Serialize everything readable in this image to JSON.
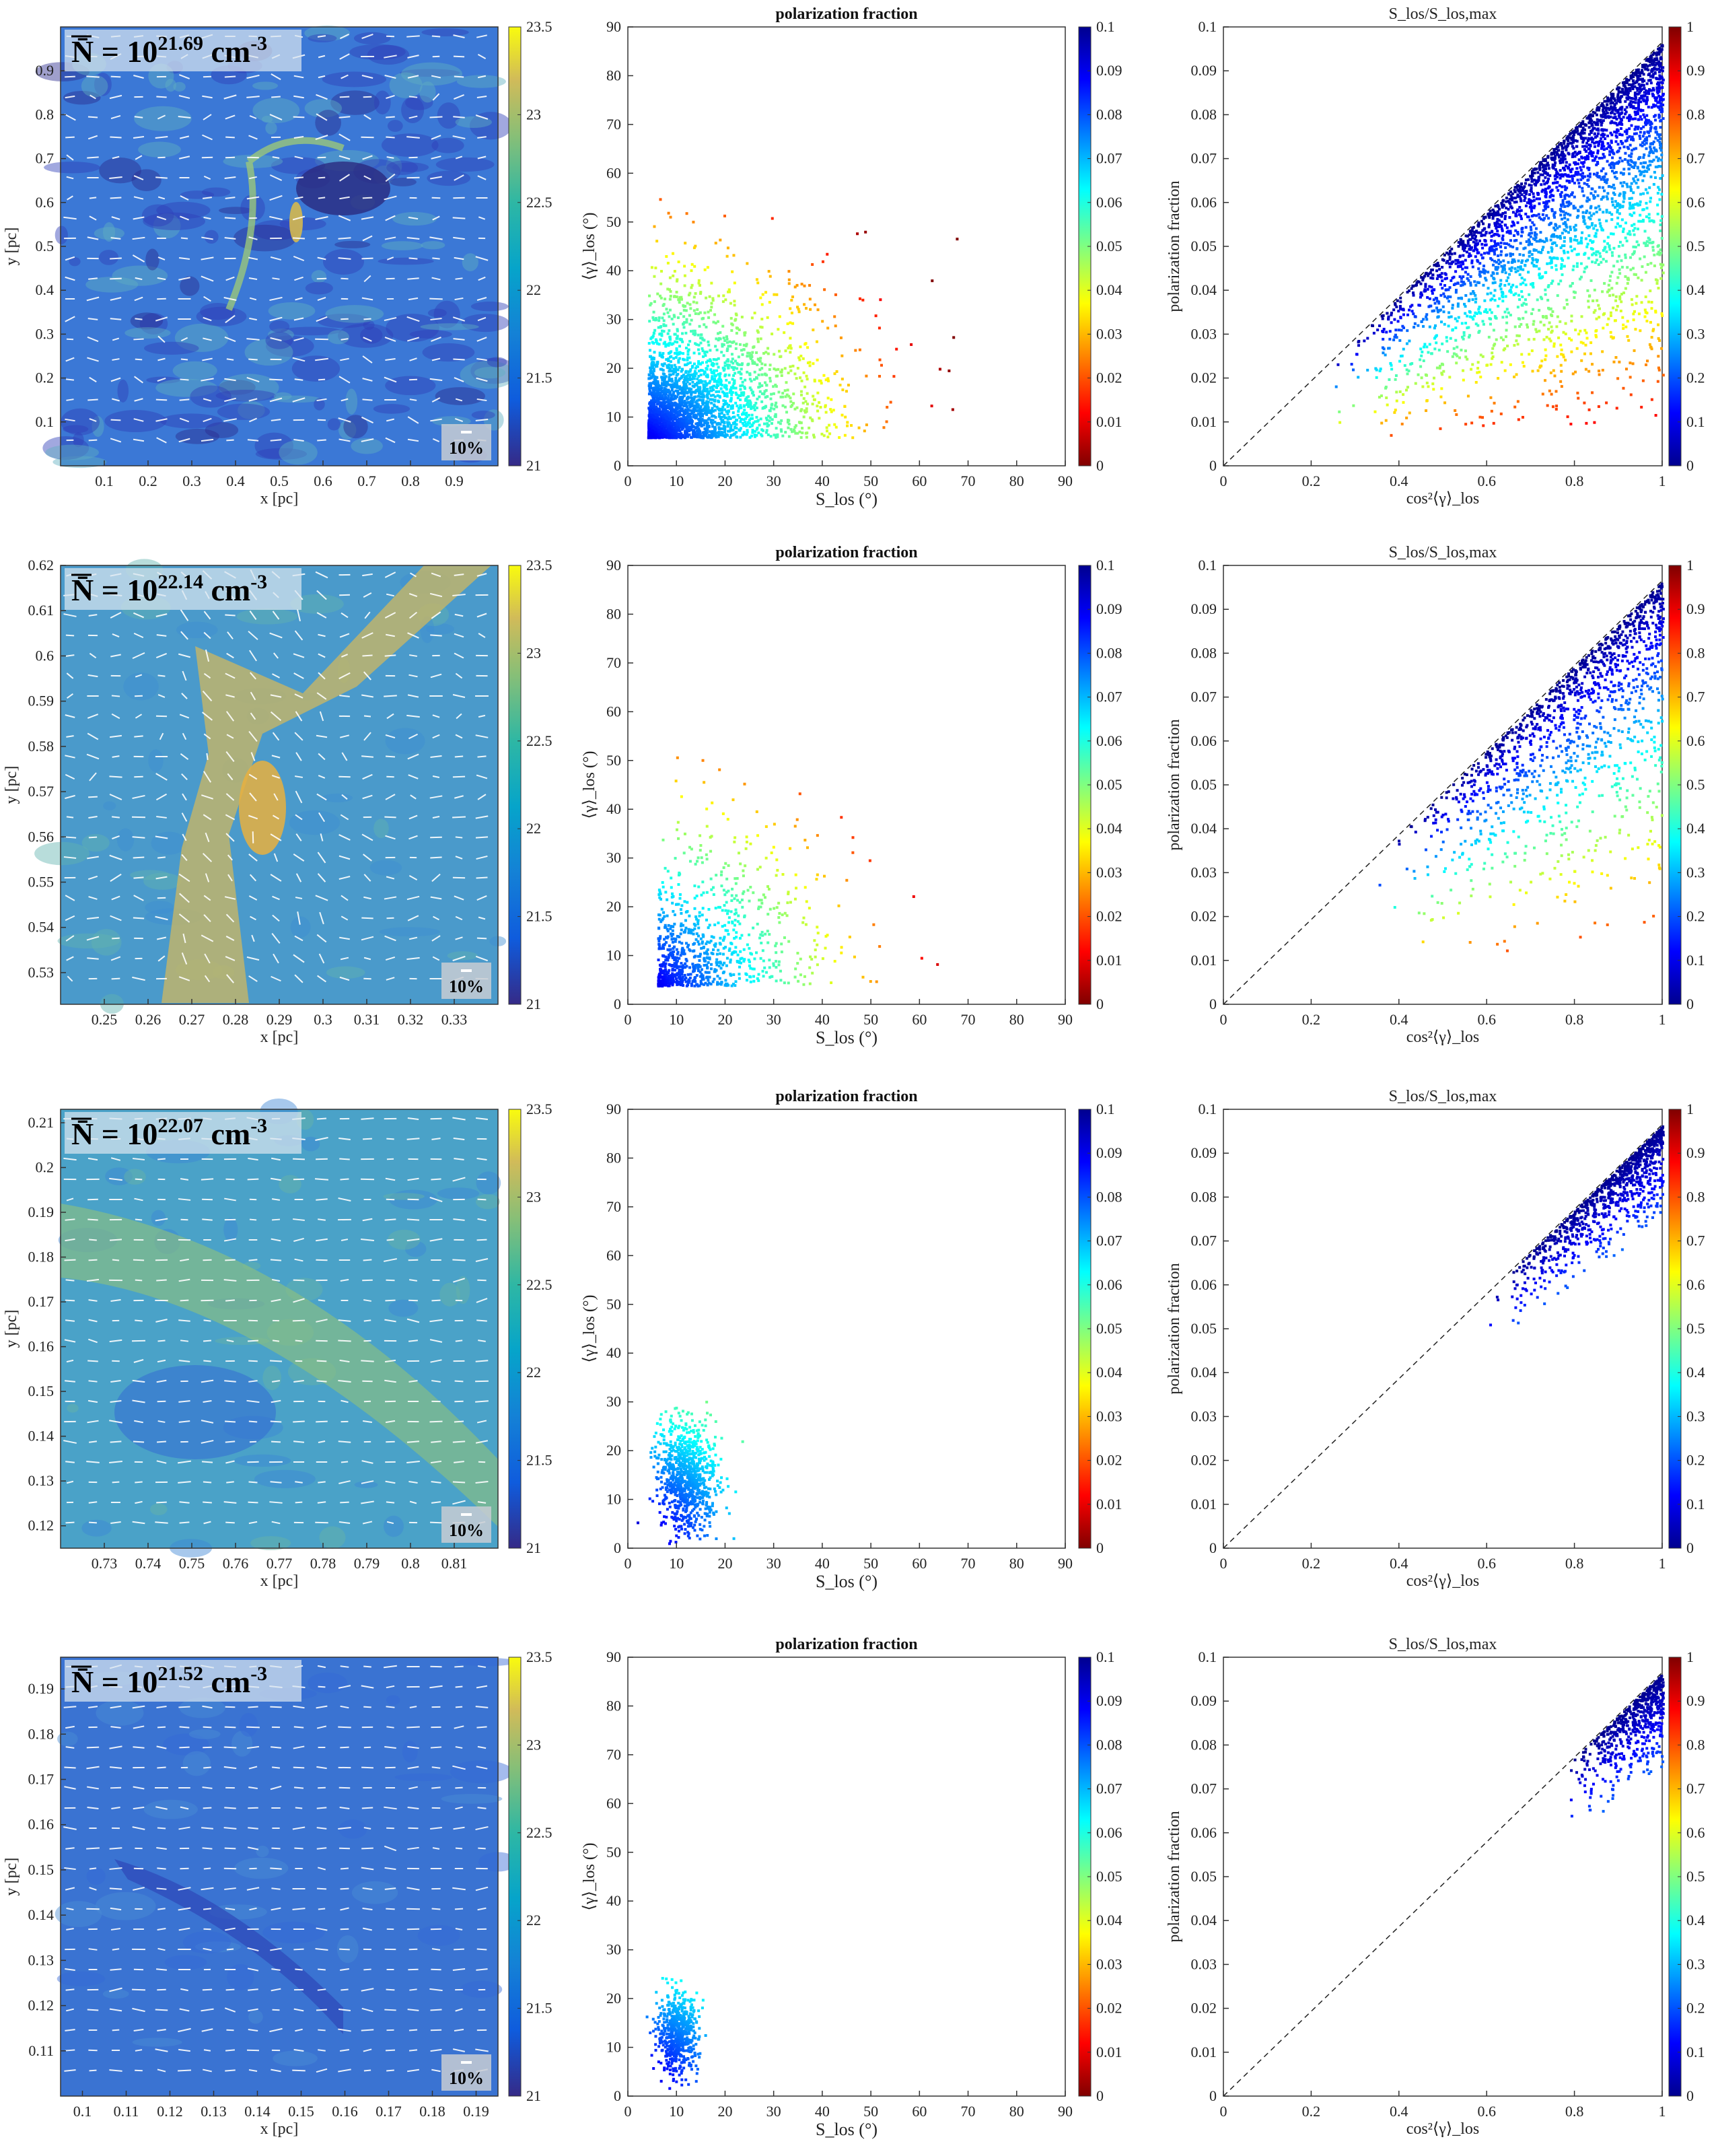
{
  "figure": {
    "rows": [
      {
        "map": {
          "density_label": "N̄ = 10",
          "density_exp": "21.69",
          "density_unit": " cm",
          "density_unit_exp": "-3",
          "scale_bar_label": "10%",
          "xlabel": "x [pc]",
          "ylabel": "y [pc]",
          "xticks": [
            "0.1",
            "0.2",
            "0.3",
            "0.4",
            "0.5",
            "0.6",
            "0.7",
            "0.8",
            "0.9"
          ],
          "xtick_vals": [
            0.1,
            0.2,
            0.3,
            0.4,
            0.5,
            0.6,
            0.7,
            0.8,
            0.9
          ],
          "xlim": [
            0.0,
            1.0
          ],
          "yticks": [
            "0.1",
            "0.2",
            "0.3",
            "0.4",
            "0.5",
            "0.6",
            "0.7",
            "0.8",
            "0.9"
          ],
          "ytick_vals": [
            0.1,
            0.2,
            0.3,
            0.4,
            0.5,
            0.6,
            0.7,
            0.8,
            0.9
          ],
          "ylim": [
            0.0,
            1.0
          ],
          "colorbar_ticks": [
            "21",
            "21.5",
            "22",
            "22.5",
            "23",
            "23.5"
          ],
          "colorbar_range": [
            21,
            23.5
          ],
          "type": "heatmap"
        },
        "scatter1": {
          "title": "polarization fraction",
          "type": "scatter",
          "xlabel": "S_los (°)",
          "ylabel": "⟨γ⟩_los (°)",
          "xticks": [
            "0",
            "10",
            "20",
            "30",
            "40",
            "50",
            "60",
            "70",
            "80",
            "90"
          ],
          "yticks": [
            "0",
            "10",
            "20",
            "30",
            "40",
            "50",
            "60",
            "70",
            "80",
            "90"
          ],
          "xlim": [
            0,
            90
          ],
          "ylim": [
            0,
            90
          ],
          "colorbar_ticks": [
            "0",
            "0.01",
            "0.02",
            "0.03",
            "0.04",
            "0.05",
            "0.06",
            "0.07",
            "0.08",
            "0.09",
            "0.1"
          ],
          "cluster": {
            "cx": 10,
            "cy": 14,
            "sx": 18,
            "sy": 12,
            "xmax": 72,
            "ymax": 60,
            "n": 3000
          }
        },
        "scatter2": {
          "title": "S_los/S_los,max",
          "type": "scatter",
          "xlabel": "cos²⟨γ⟩_los",
          "ylabel": "polarization fraction",
          "xticks": [
            "0",
            "0.2",
            "0.4",
            "0.6",
            "0.8",
            "1"
          ],
          "yticks": [
            "0",
            "0.01",
            "0.02",
            "0.03",
            "0.04",
            "0.05",
            "0.06",
            "0.07",
            "0.08",
            "0.09",
            "0.1"
          ],
          "xlim": [
            0,
            1
          ],
          "ylim": [
            0,
            0.1
          ],
          "colorbar_ticks": [
            "0",
            "0.1",
            "0.2",
            "0.3",
            "0.4",
            "0.5",
            "0.6",
            "0.7",
            "0.8",
            "0.9",
            "1"
          ],
          "reference_line": {
            "x": [
              0,
              1
            ],
            "y": [
              0,
              0.0965
            ]
          },
          "cluster": {
            "xmin": 0.25,
            "n": 3000
          }
        }
      },
      {
        "map": {
          "density_label": "N̄ = 10",
          "density_exp": "22.14",
          "density_unit": " cm",
          "density_unit_exp": "-3",
          "scale_bar_label": "10%",
          "xlabel": "x [pc]",
          "ylabel": "y [pc]",
          "xticks": [
            "0.25",
            "0.26",
            "0.27",
            "0.28",
            "0.29",
            "0.3",
            "0.31",
            "0.32",
            "0.33"
          ],
          "xtick_vals": [
            0.25,
            0.26,
            0.27,
            0.28,
            0.29,
            0.3,
            0.31,
            0.32,
            0.33
          ],
          "xlim": [
            0.24,
            0.34
          ],
          "yticks": [
            "0.53",
            "0.54",
            "0.55",
            "0.56",
            "0.57",
            "0.58",
            "0.59",
            "0.6",
            "0.61",
            "0.62"
          ],
          "ytick_vals": [
            0.53,
            0.54,
            0.55,
            0.56,
            0.57,
            0.58,
            0.59,
            0.6,
            0.61,
            0.62
          ],
          "ylim": [
            0.523,
            0.62
          ],
          "colorbar_ticks": [
            "21",
            "21.5",
            "22",
            "22.5",
            "23",
            "23.5"
          ],
          "colorbar_range": [
            21,
            23.5
          ],
          "type": "heatmap"
        },
        "scatter1": {
          "title": "polarization fraction",
          "type": "scatter",
          "xlabel": "S_los (°)",
          "ylabel": "⟨γ⟩_los (°)",
          "xticks": [
            "0",
            "10",
            "20",
            "30",
            "40",
            "50",
            "60",
            "70",
            "80",
            "90"
          ],
          "yticks": [
            "0",
            "10",
            "20",
            "30",
            "40",
            "50",
            "60",
            "70",
            "80",
            "90"
          ],
          "xlim": [
            0,
            90
          ],
          "ylim": [
            0,
            90
          ],
          "colorbar_ticks": [
            "0",
            "0.01",
            "0.02",
            "0.03",
            "0.04",
            "0.05",
            "0.06",
            "0.07",
            "0.08",
            "0.09",
            "0.1"
          ],
          "cluster": {
            "cx": 12,
            "cy": 12,
            "sx": 18,
            "sy": 12,
            "xmax": 72,
            "ymax": 55,
            "n": 900
          }
        },
        "scatter2": {
          "title": "S_los/S_los,max",
          "type": "scatter",
          "xlabel": "cos²⟨γ⟩_los",
          "ylabel": "polarization fraction",
          "xticks": [
            "0",
            "0.2",
            "0.4",
            "0.6",
            "0.8",
            "1"
          ],
          "yticks": [
            "0",
            "0.01",
            "0.02",
            "0.03",
            "0.04",
            "0.05",
            "0.06",
            "0.07",
            "0.08",
            "0.09",
            "0.1"
          ],
          "xlim": [
            0,
            1
          ],
          "ylim": [
            0,
            0.1
          ],
          "colorbar_ticks": [
            "0",
            "0.1",
            "0.2",
            "0.3",
            "0.4",
            "0.5",
            "0.6",
            "0.7",
            "0.8",
            "0.9",
            "1"
          ],
          "reference_line": {
            "x": [
              0,
              1
            ],
            "y": [
              0,
              0.0965
            ]
          },
          "cluster": {
            "xmin": 0.35,
            "n": 1300
          }
        }
      },
      {
        "map": {
          "density_label": "N̄ = 10",
          "density_exp": "22.07",
          "density_unit": " cm",
          "density_unit_exp": "-3",
          "scale_bar_label": "10%",
          "xlabel": "x [pc]",
          "ylabel": "y [pc]",
          "xticks": [
            "0.73",
            "0.74",
            "0.75",
            "0.76",
            "0.77",
            "0.78",
            "0.79",
            "0.8",
            "0.81"
          ],
          "xtick_vals": [
            0.73,
            0.74,
            0.75,
            0.76,
            0.77,
            0.78,
            0.79,
            0.8,
            0.81
          ],
          "xlim": [
            0.72,
            0.82
          ],
          "yticks": [
            "0.12",
            "0.13",
            "0.14",
            "0.15",
            "0.16",
            "0.17",
            "0.18",
            "0.19",
            "0.2",
            "0.21"
          ],
          "ytick_vals": [
            0.12,
            0.13,
            0.14,
            0.15,
            0.16,
            0.17,
            0.18,
            0.19,
            0.2,
            0.21
          ],
          "ylim": [
            0.115,
            0.213
          ],
          "colorbar_ticks": [
            "21",
            "21.5",
            "22",
            "22.5",
            "23",
            "23.5"
          ],
          "colorbar_range": [
            21,
            23.5
          ],
          "type": "heatmap"
        },
        "scatter1": {
          "title": "polarization fraction",
          "type": "scatter",
          "xlabel": "S_los (°)",
          "ylabel": "⟨γ⟩_los (°)",
          "xticks": [
            "0",
            "10",
            "20",
            "30",
            "40",
            "50",
            "60",
            "70",
            "80",
            "90"
          ],
          "yticks": [
            "0",
            "10",
            "20",
            "30",
            "40",
            "50",
            "60",
            "70",
            "80",
            "90"
          ],
          "xlim": [
            0,
            90
          ],
          "ylim": [
            0,
            90
          ],
          "colorbar_ticks": [
            "0",
            "0.01",
            "0.02",
            "0.03",
            "0.04",
            "0.05",
            "0.06",
            "0.07",
            "0.08",
            "0.09",
            "0.1"
          ],
          "cluster": {
            "cx": 12,
            "cy": 15,
            "sx": 5,
            "sy": 7,
            "xmax": 26,
            "ymax": 38,
            "n": 900
          }
        },
        "scatter2": {
          "title": "S_los/S_los,max",
          "type": "scatter",
          "xlabel": "cos²⟨γ⟩_los",
          "ylabel": "polarization fraction",
          "xticks": [
            "0",
            "0.2",
            "0.4",
            "0.6",
            "0.8",
            "1"
          ],
          "yticks": [
            "0",
            "0.01",
            "0.02",
            "0.03",
            "0.04",
            "0.05",
            "0.06",
            "0.07",
            "0.08",
            "0.09",
            "0.1"
          ],
          "xlim": [
            0,
            1
          ],
          "ylim": [
            0,
            0.1
          ],
          "colorbar_ticks": [
            "0",
            "0.1",
            "0.2",
            "0.3",
            "0.4",
            "0.5",
            "0.6",
            "0.7",
            "0.8",
            "0.9",
            "1"
          ],
          "reference_line": {
            "x": [
              0,
              1
            ],
            "y": [
              0,
              0.0965
            ]
          },
          "cluster": {
            "xmin": 0.6,
            "n": 900
          }
        }
      },
      {
        "map": {
          "density_label": "N̄ = 10",
          "density_exp": "21.52",
          "density_unit": " cm",
          "density_unit_exp": "-3",
          "scale_bar_label": "10%",
          "xlabel": "x [pc]",
          "ylabel": "y [pc]",
          "xticks": [
            "0.1",
            "0.11",
            "0.12",
            "0.13",
            "0.14",
            "0.15",
            "0.16",
            "0.17",
            "0.18",
            "0.19"
          ],
          "xtick_vals": [
            0.1,
            0.11,
            0.12,
            0.13,
            0.14,
            0.15,
            0.16,
            0.17,
            0.18,
            0.19
          ],
          "xlim": [
            0.095,
            0.195
          ],
          "yticks": [
            "0.11",
            "0.12",
            "0.13",
            "0.14",
            "0.15",
            "0.16",
            "0.17",
            "0.18",
            "0.19"
          ],
          "ytick_vals": [
            0.11,
            0.12,
            0.13,
            0.14,
            0.15,
            0.16,
            0.17,
            0.18,
            0.19
          ],
          "ylim": [
            0.1,
            0.197
          ],
          "colorbar_ticks": [
            "21",
            "21.5",
            "22",
            "22.5",
            "23",
            "23.5"
          ],
          "colorbar_range": [
            21,
            23.5
          ],
          "type": "heatmap"
        },
        "scatter1": {
          "title": "polarization fraction",
          "type": "scatter",
          "xlabel": "S_los (°)",
          "ylabel": "⟨γ⟩_los (°)",
          "xticks": [
            "0",
            "10",
            "20",
            "30",
            "40",
            "50",
            "60",
            "70",
            "80",
            "90"
          ],
          "yticks": [
            "0",
            "10",
            "20",
            "30",
            "40",
            "50",
            "60",
            "70",
            "80",
            "90"
          ],
          "xlim": [
            0,
            90
          ],
          "ylim": [
            0,
            90
          ],
          "colorbar_ticks": [
            "0",
            "0.01",
            "0.02",
            "0.03",
            "0.04",
            "0.05",
            "0.06",
            "0.07",
            "0.08",
            "0.09",
            "0.1"
          ],
          "cluster": {
            "cx": 10,
            "cy": 13,
            "sx": 3.5,
            "sy": 5,
            "xmax": 18,
            "ymax": 28,
            "n": 600
          }
        },
        "scatter2": {
          "title": "S_los/S_los,max",
          "type": "scatter",
          "xlabel": "cos²⟨γ⟩_los",
          "ylabel": "polarization fraction",
          "xticks": [
            "0",
            "0.2",
            "0.4",
            "0.6",
            "0.8",
            "1"
          ],
          "yticks": [
            "0",
            "0.01",
            "0.02",
            "0.03",
            "0.04",
            "0.05",
            "0.06",
            "0.07",
            "0.08",
            "0.09",
            "0.1"
          ],
          "xlim": [
            0,
            1
          ],
          "ylim": [
            0,
            0.1
          ],
          "colorbar_ticks": [
            "0",
            "0.1",
            "0.2",
            "0.3",
            "0.4",
            "0.5",
            "0.6",
            "0.7",
            "0.8",
            "0.9",
            "1"
          ],
          "reference_line": {
            "x": [
              0,
              1
            ],
            "y": [
              0,
              0.0965
            ]
          },
          "cluster": {
            "xmin": 0.78,
            "n": 600
          }
        }
      }
    ]
  },
  "chart_data": [
    {
      "type": "heatmap",
      "title": "N̄ = 10^21.69 cm^-3",
      "xlabel": "x [pc]",
      "ylabel": "y [pc]",
      "xlim": [
        0,
        1
      ],
      "ylim": [
        0,
        1
      ],
      "colorbar": [
        21,
        23.5
      ]
    },
    {
      "type": "scatter",
      "title": "polarization fraction",
      "xlabel": "S_los (°)",
      "ylabel": "⟨γ⟩_los (°)",
      "xlim": [
        0,
        90
      ],
      "ylim": [
        0,
        90
      ],
      "color_range": [
        0,
        0.1
      ]
    },
    {
      "type": "scatter",
      "title": "S_los/S_los,max",
      "xlabel": "cos²⟨γ⟩_los",
      "ylabel": "polarization fraction",
      "xlim": [
        0,
        1
      ],
      "ylim": [
        0,
        0.1
      ],
      "color_range": [
        0,
        1
      ]
    },
    {
      "type": "heatmap",
      "title": "N̄ = 10^22.14 cm^-3",
      "xlabel": "x [pc]",
      "ylabel": "y [pc]",
      "xlim": [
        0.24,
        0.34
      ],
      "ylim": [
        0.523,
        0.62
      ],
      "colorbar": [
        21,
        23.5
      ]
    },
    {
      "type": "scatter",
      "title": "polarization fraction",
      "xlabel": "S_los (°)",
      "ylabel": "⟨γ⟩_los (°)",
      "xlim": [
        0,
        90
      ],
      "ylim": [
        0,
        90
      ],
      "color_range": [
        0,
        0.1
      ]
    },
    {
      "type": "scatter",
      "title": "S_los/S_los,max",
      "xlabel": "cos²⟨γ⟩_los",
      "ylabel": "polarization fraction",
      "xlim": [
        0,
        1
      ],
      "ylim": [
        0,
        0.1
      ],
      "color_range": [
        0,
        1
      ]
    },
    {
      "type": "heatmap",
      "title": "N̄ = 10^22.07 cm^-3",
      "xlabel": "x [pc]",
      "ylabel": "y [pc]",
      "xlim": [
        0.72,
        0.82
      ],
      "ylim": [
        0.115,
        0.213
      ],
      "colorbar": [
        21,
        23.5
      ]
    },
    {
      "type": "scatter",
      "title": "polarization fraction",
      "xlabel": "S_los (°)",
      "ylabel": "⟨γ⟩_los (°)",
      "xlim": [
        0,
        90
      ],
      "ylim": [
        0,
        90
      ],
      "color_range": [
        0,
        0.1
      ]
    },
    {
      "type": "scatter",
      "title": "S_los/S_los,max",
      "xlabel": "cos²⟨γ⟩_los",
      "ylabel": "polarization fraction",
      "xlim": [
        0,
        1
      ],
      "ylim": [
        0,
        0.1
      ],
      "color_range": [
        0,
        1
      ]
    },
    {
      "type": "heatmap",
      "title": "N̄ = 10^21.52 cm^-3",
      "xlabel": "x [pc]",
      "ylabel": "y [pc]",
      "xlim": [
        0.095,
        0.195
      ],
      "ylim": [
        0.1,
        0.197
      ],
      "colorbar": [
        21,
        23.5
      ]
    },
    {
      "type": "scatter",
      "title": "polarization fraction",
      "xlabel": "S_los (°)",
      "ylabel": "⟨γ⟩_los (°)",
      "xlim": [
        0,
        90
      ],
      "ylim": [
        0,
        90
      ],
      "color_range": [
        0,
        0.1
      ]
    },
    {
      "type": "scatter",
      "title": "S_los/S_los,max",
      "xlabel": "cos²⟨γ⟩_los",
      "ylabel": "polarization fraction",
      "xlim": [
        0,
        1
      ],
      "ylim": [
        0,
        0.1
      ],
      "color_range": [
        0,
        1
      ]
    }
  ]
}
